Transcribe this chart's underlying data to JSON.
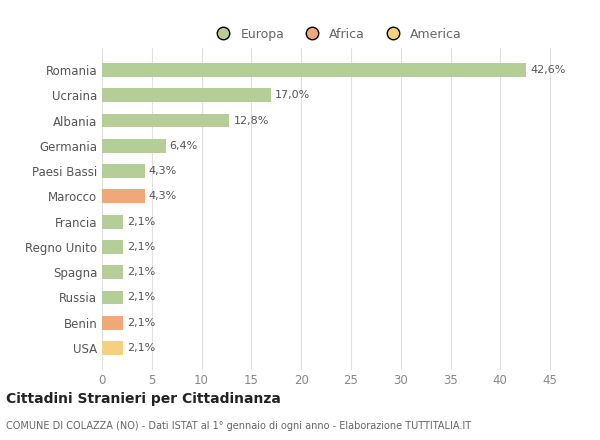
{
  "countries": [
    "Romania",
    "Ucraina",
    "Albania",
    "Germania",
    "Paesi Bassi",
    "Marocco",
    "Francia",
    "Regno Unito",
    "Spagna",
    "Russia",
    "Benin",
    "USA"
  ],
  "values": [
    42.6,
    17.0,
    12.8,
    6.4,
    4.3,
    4.3,
    2.1,
    2.1,
    2.1,
    2.1,
    2.1,
    2.1
  ],
  "labels": [
    "42,6%",
    "17,0%",
    "12,8%",
    "6,4%",
    "4,3%",
    "4,3%",
    "2,1%",
    "2,1%",
    "2,1%",
    "2,1%",
    "2,1%",
    "2,1%"
  ],
  "colors": [
    "#b5cd96",
    "#b5cd96",
    "#b5cd96",
    "#b5cd96",
    "#b5cd96",
    "#f0a878",
    "#b5cd96",
    "#b5cd96",
    "#b5cd96",
    "#b5cd96",
    "#f0a878",
    "#f5d080"
  ],
  "legend_labels": [
    "Europa",
    "Africa",
    "America"
  ],
  "legend_colors": [
    "#b5cd96",
    "#f0a878",
    "#f5d080"
  ],
  "xlim": [
    0,
    47
  ],
  "xticks": [
    0,
    5,
    10,
    15,
    20,
    25,
    30,
    35,
    40,
    45
  ],
  "title": "Cittadini Stranieri per Cittadinanza",
  "subtitle": "COMUNE DI COLAZZA (NO) - Dati ISTAT al 1° gennaio di ogni anno - Elaborazione TUTTITALIA.IT",
  "bg_color": "#ffffff",
  "grid_color": "#e0e0e0",
  "bar_height": 0.55
}
